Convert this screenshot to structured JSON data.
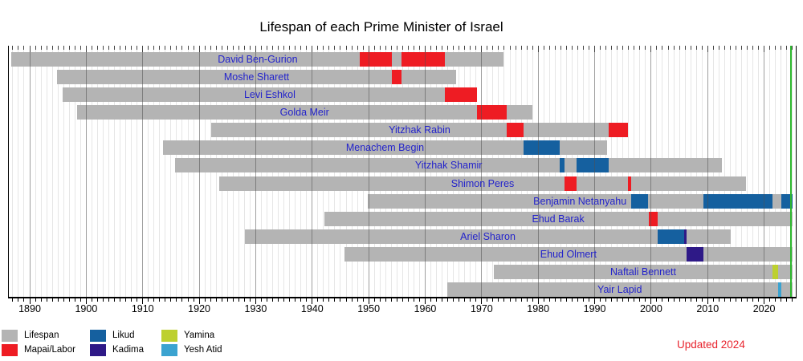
{
  "title": "Lifespan of each Prime Minister of Israel",
  "updated_label": "Updated 2024",
  "colors": {
    "lifespan": "#b4b4b4",
    "mapai_labor": "#ee1c23",
    "likud": "#15609f",
    "kadima": "#2e1987",
    "yamina": "#bdd02f",
    "yesh_atid": "#3ba3d0",
    "present_line": "#2eb82e",
    "name_text": "#2323cb",
    "updated_text": "#e8232d",
    "axis_text": "#000000",
    "grid_minor": "#e6e6e6",
    "grid_major": "#505050"
  },
  "legend": [
    {
      "label": "Lifespan",
      "color_key": "lifespan"
    },
    {
      "label": "Mapai/Labor",
      "color_key": "mapai_labor"
    },
    {
      "label": "Likud",
      "color_key": "likud"
    },
    {
      "label": "Kadima",
      "color_key": "kadima"
    },
    {
      "label": "Yamina",
      "color_key": "yamina"
    },
    {
      "label": "Yesh Atid",
      "color_key": "yesh_atid"
    }
  ],
  "chart_data": {
    "type": "bar",
    "orientation": "horizontal_timeline",
    "title": "Lifespan of each Prime Minister of Israel",
    "x_axis": {
      "min": 1886.3,
      "max": 2025.6,
      "tick_years": [
        1890,
        1900,
        1910,
        1920,
        1930,
        1940,
        1950,
        1960,
        1970,
        1980,
        1990,
        2000,
        2010,
        2020
      ],
      "minor_tick_step": 1
    },
    "present_year": 2024.7,
    "bars": [
      {
        "name": "David Ben-Gurion",
        "born": 1886.79,
        "died": 1973.92,
        "terms": [
          {
            "start": 1948.37,
            "end": 1954.07,
            "party": "mapai_labor"
          },
          {
            "start": 1955.84,
            "end": 1963.48,
            "party": "mapai_labor"
          }
        ]
      },
      {
        "name": "Moshe Sharett",
        "born": 1894.79,
        "died": 1965.52,
        "terms": [
          {
            "start": 1954.07,
            "end": 1955.84,
            "party": "mapai_labor"
          }
        ]
      },
      {
        "name": "Levi Eshkol",
        "born": 1895.82,
        "died": 1969.16,
        "terms": [
          {
            "start": 1963.48,
            "end": 1969.16,
            "party": "mapai_labor"
          }
        ]
      },
      {
        "name": "Golda Meir",
        "born": 1898.37,
        "died": 1978.92,
        "terms": [
          {
            "start": 1969.2,
            "end": 1974.42,
            "party": "mapai_labor"
          }
        ]
      },
      {
        "name": "Yitzhak Rabin",
        "born": 1922.17,
        "died": 1995.84,
        "terms": [
          {
            "start": 1974.42,
            "end": 1977.46,
            "party": "mapai_labor"
          },
          {
            "start": 1992.53,
            "end": 1995.84,
            "party": "mapai_labor"
          }
        ]
      },
      {
        "name": "Menachem Begin",
        "born": 1913.6,
        "died": 1992.19,
        "terms": [
          {
            "start": 1977.46,
            "end": 1983.76,
            "party": "likud"
          }
        ]
      },
      {
        "name": "Yitzhak Shamir",
        "born": 1915.79,
        "died": 2012.5,
        "terms": [
          {
            "start": 1983.76,
            "end": 1984.71,
            "party": "likud"
          },
          {
            "start": 1986.79,
            "end": 1992.53,
            "party": "likud"
          }
        ]
      },
      {
        "name": "Shimon Peres",
        "born": 1923.6,
        "died": 2016.74,
        "terms": [
          {
            "start": 1984.71,
            "end": 1986.79,
            "party": "mapai_labor"
          },
          {
            "start": 1995.84,
            "end": 1996.46,
            "party": "mapai_labor"
          }
        ]
      },
      {
        "name": "Benjamin Netanyahu",
        "born": 1949.8,
        "died": null,
        "terms": [
          {
            "start": 1996.46,
            "end": 1999.52,
            "party": "likud"
          },
          {
            "start": 2009.21,
            "end": 2021.45,
            "party": "likud"
          },
          {
            "start": 2022.99,
            "end": null,
            "party": "likud"
          }
        ]
      },
      {
        "name": "Ehud Barak",
        "born": 1942.1,
        "died": null,
        "terms": [
          {
            "start": 1999.52,
            "end": 2001.19,
            "party": "mapai_labor"
          }
        ]
      },
      {
        "name": "Ariel Sharon",
        "born": 1928.15,
        "died": 2014.03,
        "terms": [
          {
            "start": 2001.19,
            "end": 2005.88,
            "party": "likud"
          },
          {
            "start": 2005.88,
            "end": 2006.29,
            "party": "kadima"
          }
        ]
      },
      {
        "name": "Ehud Olmert",
        "born": 1945.73,
        "died": null,
        "terms": [
          {
            "start": 2006.29,
            "end": 2009.26,
            "party": "kadima"
          }
        ]
      },
      {
        "name": "Naftali Bennett",
        "born": 1972.2,
        "died": null,
        "terms": [
          {
            "start": 2021.45,
            "end": 2022.5,
            "party": "yamina"
          }
        ]
      },
      {
        "name": "Yair Lapid",
        "born": 1963.88,
        "died": null,
        "terms": [
          {
            "start": 2022.5,
            "end": 2022.99,
            "party": "yesh_atid"
          }
        ]
      }
    ]
  }
}
